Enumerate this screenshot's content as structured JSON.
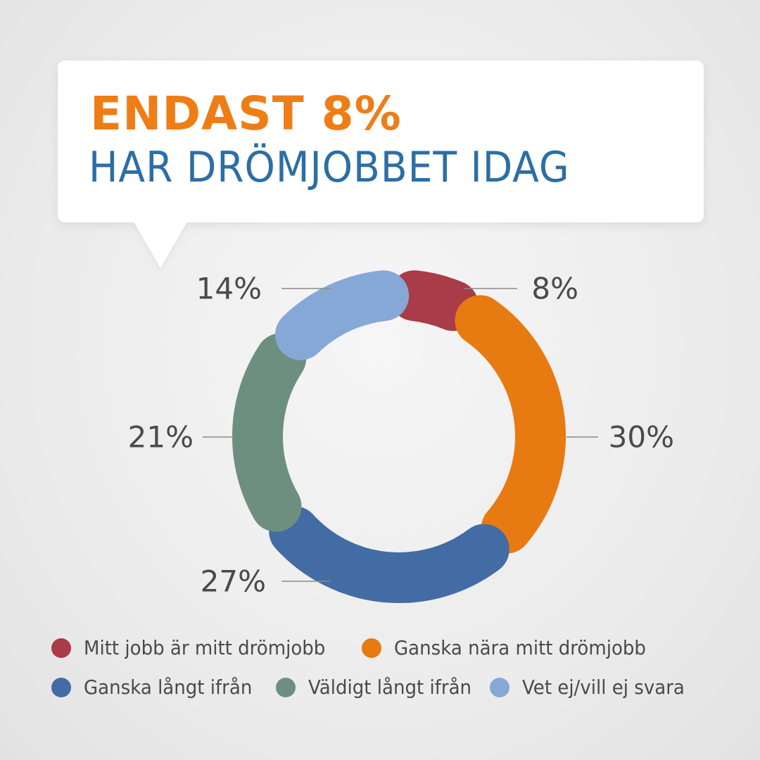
{
  "header": {
    "headline": "ENDAST 8%",
    "subheadline": "HAR DRÖMJOBBET IDAG"
  },
  "chart_data": {
    "type": "pie",
    "style": "donut",
    "title": "ENDAST 8% HAR DRÖMJOBBET IDAG",
    "categories": [
      "Mitt jobb är mitt drömjobb",
      "Ganska nära mitt drömjobb",
      "Ganska långt ifrån",
      "Väldigt långt ifrån",
      "Vet ej/vill ej svara"
    ],
    "values": [
      8,
      30,
      27,
      21,
      14
    ],
    "data_labels": [
      "8%",
      "30%",
      "27%",
      "21%",
      "14%"
    ],
    "colors": [
      "#a93c48",
      "#e87a12",
      "#446ca4",
      "#6d8f80",
      "#86a8d6"
    ],
    "legend_position": "bottom"
  },
  "label_color": "#4a4a4a",
  "leader_color": "#8a8a8a"
}
